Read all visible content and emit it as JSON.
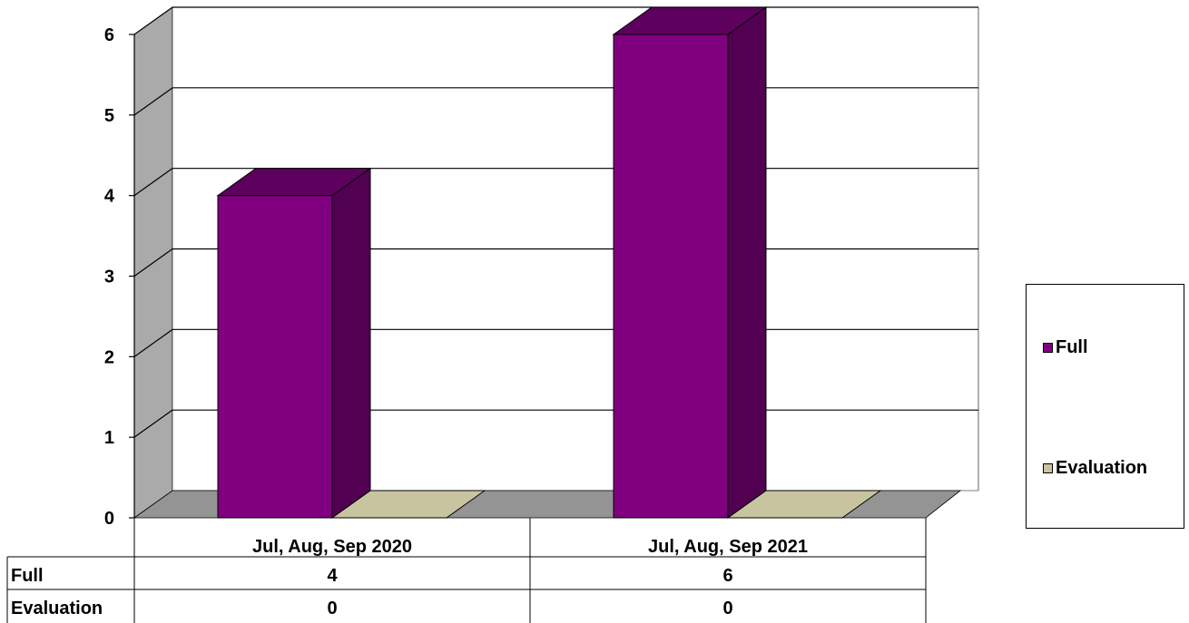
{
  "chart_data": {
    "type": "bar",
    "categories": [
      "Jul, Aug, Sep 2020",
      "Jul, Aug, Sep 2021"
    ],
    "series": [
      {
        "name": "Full",
        "values": [
          4,
          6
        ]
      },
      {
        "name": "Evaluation",
        "values": [
          0,
          0
        ]
      }
    ],
    "ylim": [
      0,
      6
    ],
    "yticks": [
      "0",
      "1",
      "2",
      "3",
      "4",
      "5",
      "6"
    ],
    "grid": true,
    "three_d": true,
    "legend_position": "right",
    "data_table": true
  },
  "table": {
    "rows": [
      {
        "label": "Full",
        "values": [
          "4",
          "6"
        ]
      },
      {
        "label": "Evaluation",
        "values": [
          "0",
          "0"
        ]
      }
    ]
  },
  "colors": {
    "full_front": "#800080",
    "full_top": "#5e005e",
    "full_side": "#520052",
    "evaluation": "#c8c4a0",
    "back_wall": "#ffffff",
    "side_wall": "#aaaaaa",
    "floor": "#949494"
  }
}
